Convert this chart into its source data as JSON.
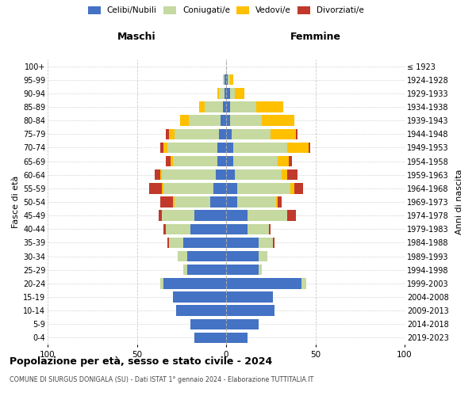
{
  "age_groups": [
    "0-4",
    "5-9",
    "10-14",
    "15-19",
    "20-24",
    "25-29",
    "30-34",
    "35-39",
    "40-44",
    "45-49",
    "50-54",
    "55-59",
    "60-64",
    "65-69",
    "70-74",
    "75-79",
    "80-84",
    "85-89",
    "90-94",
    "95-99",
    "100+"
  ],
  "birth_years": [
    "2019-2023",
    "2014-2018",
    "2009-2013",
    "2004-2008",
    "1999-2003",
    "1994-1998",
    "1989-1993",
    "1984-1988",
    "1979-1983",
    "1974-1978",
    "1969-1973",
    "1964-1968",
    "1959-1963",
    "1954-1958",
    "1949-1953",
    "1944-1948",
    "1939-1943",
    "1934-1938",
    "1929-1933",
    "1924-1928",
    "≤ 1923"
  ],
  "male_celibi": [
    18,
    20,
    28,
    30,
    35,
    22,
    22,
    24,
    20,
    18,
    9,
    7,
    6,
    5,
    5,
    4,
    3,
    2,
    1,
    1,
    0
  ],
  "male_coniugati": [
    0,
    0,
    0,
    0,
    2,
    2,
    5,
    8,
    14,
    18,
    20,
    28,
    30,
    25,
    28,
    25,
    18,
    10,
    3,
    1,
    0
  ],
  "male_vedovi": [
    0,
    0,
    0,
    0,
    0,
    0,
    0,
    0,
    0,
    0,
    1,
    1,
    1,
    1,
    2,
    3,
    5,
    3,
    1,
    0,
    0
  ],
  "male_divorziati": [
    0,
    0,
    0,
    0,
    0,
    0,
    0,
    1,
    1,
    2,
    7,
    7,
    3,
    3,
    2,
    2,
    0,
    0,
    0,
    0,
    0
  ],
  "female_celibi": [
    12,
    18,
    27,
    26,
    42,
    18,
    18,
    18,
    12,
    12,
    6,
    6,
    5,
    4,
    4,
    3,
    2,
    2,
    2,
    1,
    0
  ],
  "female_coniugati": [
    0,
    0,
    0,
    0,
    3,
    2,
    5,
    8,
    12,
    22,
    22,
    30,
    26,
    25,
    30,
    22,
    18,
    15,
    3,
    1,
    0
  ],
  "female_vedovi": [
    0,
    0,
    0,
    0,
    0,
    0,
    0,
    0,
    0,
    0,
    1,
    2,
    3,
    6,
    12,
    14,
    18,
    15,
    5,
    2,
    0
  ],
  "female_divorziati": [
    0,
    0,
    0,
    0,
    0,
    0,
    0,
    1,
    1,
    5,
    2,
    5,
    6,
    2,
    1,
    1,
    0,
    0,
    0,
    0,
    0
  ],
  "colors": {
    "celibi": "#4472c4",
    "coniugati": "#c5d9a0",
    "vedovi": "#ffc000",
    "divorziati": "#c0392b"
  },
  "title": "Popolazione per età, sesso e stato civile - 2024",
  "subtitle": "COMUNE DI SIURGUS DONIGALA (SU) - Dati ISTAT 1° gennaio 2024 - Elaborazione TUTTITALIA.IT",
  "xlabel_left": "Maschi",
  "xlabel_right": "Femmine",
  "ylabel_left": "Fasce di età",
  "ylabel_right": "Anni di nascita",
  "xlim": 100,
  "background_color": "#ffffff",
  "grid_color": "#cccccc"
}
